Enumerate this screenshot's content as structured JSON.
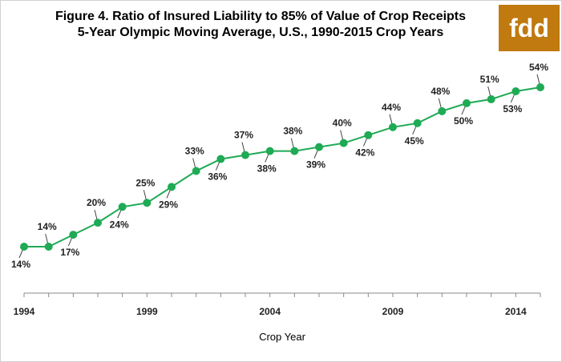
{
  "header": {
    "title_line1": "Figure 4. Ratio of Insured Liability to 85% of Value of Crop Receipts",
    "title_line2": "5-Year Olympic Moving Average, U.S., 1990-2015 Crop Years",
    "logo_text": "fdd",
    "logo_color": "#c07a10"
  },
  "chart_data": {
    "type": "line",
    "title": "Figure 4. Ratio of Insured Liability to 85% of Value of Crop Receipts",
    "subtitle": "5-Year Olympic Moving Average, U.S., 1990-2015 Crop Years",
    "xlabel": "Crop Year",
    "ylabel": "",
    "x": [
      1994,
      1995,
      1996,
      1997,
      1998,
      1999,
      2000,
      2001,
      2002,
      2003,
      2004,
      2005,
      2006,
      2007,
      2008,
      2009,
      2010,
      2011,
      2012,
      2013,
      2014,
      2015
    ],
    "series": [
      {
        "values": [
          14,
          14,
          17,
          20,
          24,
          25,
          29,
          33,
          36,
          37,
          38,
          38,
          39,
          40,
          42,
          44,
          45,
          48,
          50,
          51,
          53,
          54
        ],
        "color": "#1faa55"
      }
    ],
    "data_labels": [
      "14%",
      "14%",
      "17%",
      "20%",
      "24%",
      "25%",
      "29%",
      "33%",
      "36%",
      "37%",
      "38%",
      "38%",
      "39%",
      "40%",
      "42%",
      "44%",
      "45%",
      "48%",
      "50%",
      "51%",
      "53%",
      "54%"
    ],
    "x_ticks": [
      "1994",
      "1999",
      "2004",
      "2009",
      "2014"
    ],
    "xlim": [
      1994,
      2015
    ],
    "grid": false,
    "legend": "none"
  }
}
